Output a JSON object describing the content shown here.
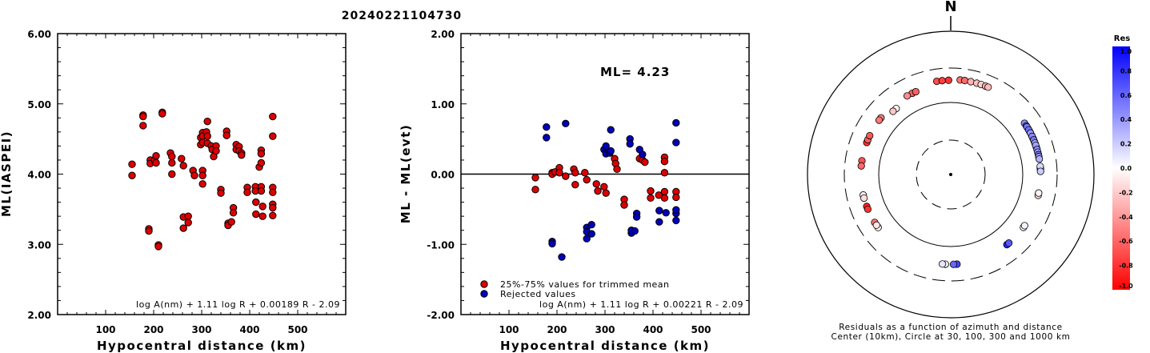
{
  "title": "20240221104730",
  "colors": {
    "accepted": "#dd0000",
    "rejected": "#0000bb",
    "frame": "#000000"
  },
  "chart_data": [
    {
      "type": "scatter",
      "xlabel": "Hypocentral distance (km)",
      "ylabel": "ML(IASPEI)",
      "xlim": [
        0,
        600
      ],
      "ylim": [
        2.0,
        6.0
      ],
      "xticks": [
        "100",
        "200",
        "300",
        "400",
        "500"
      ],
      "yticks": [
        "2.00",
        "3.00",
        "4.00",
        "5.00",
        "6.00"
      ],
      "formula": "log A(nm) + 1.11 log R + 0.00189 R - 2.09",
      "series": [
        {
          "color": "#dd0000",
          "points": [
            [
              155,
              4.14
            ],
            [
              155,
              3.98
            ],
            [
              178,
              4.84
            ],
            [
              178,
              4.82
            ],
            [
              178,
              4.69
            ],
            [
              190,
              3.22
            ],
            [
              190,
              3.19
            ],
            [
              193,
              4.2
            ],
            [
              193,
              4.15
            ],
            [
              202,
              4.2
            ],
            [
              205,
              4.26
            ],
            [
              205,
              4.16
            ],
            [
              210,
              2.99
            ],
            [
              210,
              2.97
            ],
            [
              218,
              4.88
            ],
            [
              218,
              4.86
            ],
            [
              235,
              4.3
            ],
            [
              238,
              4.25
            ],
            [
              238,
              4.16
            ],
            [
              238,
              4.0
            ],
            [
              258,
              4.22
            ],
            [
              262,
              4.12
            ],
            [
              262,
              3.39
            ],
            [
              262,
              3.23
            ],
            [
              272,
              3.4
            ],
            [
              272,
              3.31
            ],
            [
              282,
              4.05
            ],
            [
              285,
              3.98
            ],
            [
              298,
              4.52
            ],
            [
              298,
              4.42
            ],
            [
              302,
              4.59
            ],
            [
              302,
              4.54
            ],
            [
              302,
              4.45
            ],
            [
              302,
              4.05
            ],
            [
              302,
              3.98
            ],
            [
              302,
              3.86
            ],
            [
              310,
              4.6
            ],
            [
              312,
              4.75
            ],
            [
              312,
              4.54
            ],
            [
              312,
              4.44
            ],
            [
              320,
              4.4
            ],
            [
              322,
              4.35
            ],
            [
              325,
              4.25
            ],
            [
              330,
              4.4
            ],
            [
              330,
              4.33
            ],
            [
              340,
              3.78
            ],
            [
              340,
              3.73
            ],
            [
              352,
              4.61
            ],
            [
              352,
              4.55
            ],
            [
              355,
              3.3
            ],
            [
              355,
              3.27
            ],
            [
              362,
              3.32
            ],
            [
              366,
              3.52
            ],
            [
              366,
              3.45
            ],
            [
              372,
              4.42
            ],
            [
              372,
              4.35
            ],
            [
              378,
              4.39
            ],
            [
              378,
              4.33
            ],
            [
              383,
              4.3
            ],
            [
              383,
              4.27
            ],
            [
              395,
              3.81
            ],
            [
              395,
              3.74
            ],
            [
              412,
              3.82
            ],
            [
              412,
              3.76
            ],
            [
              413,
              3.6
            ],
            [
              413,
              3.43
            ],
            [
              420,
              4.1
            ],
            [
              424,
              4.34
            ],
            [
              424,
              4.29
            ],
            [
              424,
              4.16
            ],
            [
              424,
              3.82
            ],
            [
              424,
              3.76
            ],
            [
              427,
              3.54
            ],
            [
              427,
              3.4
            ],
            [
              448,
              4.82
            ],
            [
              448,
              4.54
            ],
            [
              448,
              3.81
            ],
            [
              448,
              3.74
            ],
            [
              448,
              3.57
            ],
            [
              448,
              3.52
            ],
            [
              448,
              3.41
            ]
          ]
        }
      ]
    },
    {
      "type": "scatter",
      "xlabel": "Hypocentral distance (km)",
      "ylabel": "ML - ML(evt)",
      "xlim": [
        0,
        600
      ],
      "ylim": [
        -2.0,
        2.0
      ],
      "xticks": [
        "100",
        "200",
        "300",
        "400",
        "500"
      ],
      "yticks": [
        "-2.00",
        "-1.00",
        "0.00",
        "1.00",
        "2.00"
      ],
      "annotation": "ML= 4.23",
      "formula": "log A(nm) + 1.11 log R + 0.00221 R - 2.09",
      "legend": [
        {
          "label": "25%-75% values for trimmed mean",
          "color": "#dd0000"
        },
        {
          "label": "Rejected values",
          "color": "#0000bb"
        }
      ],
      "series": [
        {
          "name": "25%-75% values for trimmed mean",
          "color": "#dd0000",
          "points": [
            [
              155,
              -0.05
            ],
            [
              155,
              -0.22
            ],
            [
              190,
              0.02
            ],
            [
              190,
              0.0
            ],
            [
              196,
              0.03
            ],
            [
              205,
              0.09
            ],
            [
              205,
              0.02
            ],
            [
              218,
              -0.03
            ],
            [
              235,
              0.07
            ],
            [
              238,
              0.02
            ],
            [
              238,
              -0.15
            ],
            [
              258,
              0.02
            ],
            [
              262,
              -0.08
            ],
            [
              282,
              -0.14
            ],
            [
              285,
              -0.24
            ],
            [
              298,
              -0.18
            ],
            [
              302,
              -0.27
            ],
            [
              320,
              0.22
            ],
            [
              322,
              0.15
            ],
            [
              325,
              0.07
            ],
            [
              340,
              -0.36
            ],
            [
              340,
              -0.44
            ],
            [
              372,
              0.22
            ],
            [
              378,
              0.2
            ],
            [
              383,
              0.17
            ],
            [
              395,
              -0.24
            ],
            [
              395,
              -0.34
            ],
            [
              412,
              -0.3
            ],
            [
              424,
              0.24
            ],
            [
              424,
              0.18
            ],
            [
              424,
              0.02
            ],
            [
              424,
              -0.25
            ],
            [
              424,
              -0.34
            ],
            [
              448,
              -0.25
            ],
            [
              448,
              -0.33
            ]
          ]
        },
        {
          "name": "Rejected values",
          "color": "#0000bb",
          "points": [
            [
              178,
              0.67
            ],
            [
              178,
              0.52
            ],
            [
              190,
              -0.96
            ],
            [
              190,
              -0.99
            ],
            [
              210,
              -1.18
            ],
            [
              218,
              0.72
            ],
            [
              262,
              -0.76
            ],
            [
              262,
              -0.92
            ],
            [
              262,
              -0.82
            ],
            [
              272,
              -0.72
            ],
            [
              272,
              -0.85
            ],
            [
              298,
              0.35
            ],
            [
              302,
              0.4
            ],
            [
              302,
              0.29
            ],
            [
              310,
              0.3
            ],
            [
              312,
              0.63
            ],
            [
              312,
              0.33
            ],
            [
              355,
              -0.84
            ],
            [
              355,
              -0.8
            ],
            [
              362,
              -0.81
            ],
            [
              352,
              0.5
            ],
            [
              352,
              0.43
            ],
            [
              366,
              -0.56
            ],
            [
              366,
              -0.61
            ],
            [
              372,
              0.35
            ],
            [
              378,
              0.28
            ],
            [
              413,
              -0.52
            ],
            [
              413,
              -0.68
            ],
            [
              427,
              -0.55
            ],
            [
              448,
              0.73
            ],
            [
              448,
              0.45
            ],
            [
              448,
              -0.56
            ],
            [
              448,
              -0.66
            ],
            [
              448,
              -0.51
            ]
          ]
        }
      ]
    },
    {
      "type": "scatter",
      "subtype": "polar",
      "north_label": "N",
      "caption_line1": "Residuals as a function of azimuth and distance",
      "caption_line2": "Center (10km), Circle at 30, 100, 300 and 1000 km",
      "circles_km": [
        30,
        100,
        300,
        1000
      ],
      "colorbar": {
        "title": "Res",
        "ticks": [
          "1.0",
          "0.8",
          "0.6",
          "0.4",
          "0.2",
          "0.0",
          "-0.2",
          "-0.4",
          "-0.6",
          "-0.8",
          "-1.0"
        ],
        "range": [
          -1.0,
          1.0
        ],
        "colors": [
          "#0000ff",
          "#ffffff",
          "#ff0000"
        ]
      },
      "stations": [
        {
          "azimuth_deg": -39.6,
          "distance_km": 155,
          "residual": -0.05
        },
        {
          "azimuth_deg": -42.4,
          "distance_km": 155,
          "residual": -0.22
        },
        {
          "azimuth_deg": -25.4,
          "distance_km": 178,
          "residual": -0.65
        },
        {
          "azimuth_deg": -22.9,
          "distance_km": 178,
          "residual": -0.62
        },
        {
          "azimuth_deg": -29.0,
          "distance_km": 178,
          "residual": -0.46
        },
        {
          "azimuth_deg": -8.5,
          "distance_km": 205,
          "residual": -0.7
        },
        {
          "azimuth_deg": -5.2,
          "distance_km": 205,
          "residual": -0.75
        },
        {
          "azimuth_deg": -1.3,
          "distance_km": 205,
          "residual": -0.8
        },
        {
          "azimuth_deg": 5.7,
          "distance_km": 210,
          "residual": -0.55
        },
        {
          "azimuth_deg": 8.5,
          "distance_km": 210,
          "residual": -0.58
        },
        {
          "azimuth_deg": 12.2,
          "distance_km": 210,
          "residual": -0.3
        },
        {
          "azimuth_deg": 15.9,
          "distance_km": 210,
          "residual": -0.24
        },
        {
          "azimuth_deg": 18.7,
          "distance_km": 210,
          "residual": -0.18
        },
        {
          "azimuth_deg": 21.5,
          "distance_km": 210,
          "residual": -0.33
        },
        {
          "azimuth_deg": 23.2,
          "distance_km": 210,
          "residual": -0.27
        },
        {
          "azimuth_deg": -50.9,
          "distance_km": 178,
          "residual": -0.5
        },
        {
          "azimuth_deg": -52.8,
          "distance_km": 178,
          "residual": -0.52
        },
        {
          "azimuth_deg": -69.1,
          "distance_km": 178,
          "residual": -0.8
        },
        {
          "azimuth_deg": -67.2,
          "distance_km": 178,
          "residual": -0.62
        },
        {
          "azimuth_deg": -64.4,
          "distance_km": 178,
          "residual": -0.66
        },
        {
          "azimuth_deg": -81.2,
          "distance_km": 178,
          "residual": -0.68
        },
        {
          "azimuth_deg": -84.5,
          "distance_km": 178,
          "residual": -0.59
        },
        {
          "azimuth_deg": -103.2,
          "distance_km": 178,
          "residual": -0.05
        },
        {
          "azimuth_deg": -105.2,
          "distance_km": 178,
          "residual": -0.12
        },
        {
          "azimuth_deg": -110.8,
          "distance_km": 178,
          "residual": -0.85
        },
        {
          "azimuth_deg": -112.7,
          "distance_km": 178,
          "residual": -0.8
        },
        {
          "azimuth_deg": -122.2,
          "distance_km": 178,
          "residual": -0.55
        },
        {
          "azimuth_deg": -126.1,
          "distance_km": 178,
          "residual": -0.03
        },
        {
          "azimuth_deg": -124.3,
          "distance_km": 178,
          "residual": -0.1
        },
        {
          "azimuth_deg": 176.0,
          "distance_km": 178,
          "residual": 0.72
        },
        {
          "azimuth_deg": 178.2,
          "distance_km": 178,
          "residual": 0.6
        },
        {
          "azimuth_deg": -176.6,
          "distance_km": 178,
          "residual": 0.05
        },
        {
          "azimuth_deg": -174.7,
          "distance_km": 178,
          "residual": 0.1
        },
        {
          "azimuth_deg": 141.3,
          "distance_km": 178,
          "residual": 0.85
        },
        {
          "azimuth_deg": 139.7,
          "distance_km": 178,
          "residual": 0.65
        },
        {
          "azimuth_deg": 126.0,
          "distance_km": 178,
          "residual": 0.02
        },
        {
          "azimuth_deg": 124.7,
          "distance_km": 178,
          "residual": 0.05
        },
        {
          "azimuth_deg": 103.4,
          "distance_km": 178,
          "residual": -0.15
        },
        {
          "azimuth_deg": 101.9,
          "distance_km": 178,
          "residual": -0.05
        },
        {
          "azimuth_deg": 85.5,
          "distance_km": 178,
          "residual": 0.02
        },
        {
          "azimuth_deg": 86.3,
          "distance_km": 178,
          "residual": -0.05
        },
        {
          "azimuth_deg": 86.6,
          "distance_km": 178,
          "residual": 0.05
        },
        {
          "azimuth_deg": 84.8,
          "distance_km": 178,
          "residual": 0.15
        },
        {
          "azimuth_deg": 88.0,
          "distance_km": 178,
          "residual": 0.2
        },
        {
          "azimuth_deg": 55.2,
          "distance_km": 178,
          "residual": 0.45
        },
        {
          "azimuth_deg": 57.2,
          "distance_km": 178,
          "residual": 0.65
        },
        {
          "azimuth_deg": 59.4,
          "distance_km": 178,
          "residual": 0.72
        },
        {
          "azimuth_deg": 61.7,
          "distance_km": 178,
          "residual": 0.8
        },
        {
          "azimuth_deg": 64.5,
          "distance_km": 178,
          "residual": 0.75
        },
        {
          "azimuth_deg": 66.2,
          "distance_km": 178,
          "residual": 0.68
        },
        {
          "azimuth_deg": 68.7,
          "distance_km": 178,
          "residual": 0.85
        },
        {
          "azimuth_deg": 70.4,
          "distance_km": 178,
          "residual": 0.78
        },
        {
          "azimuth_deg": 72.3,
          "distance_km": 178,
          "residual": 0.7
        },
        {
          "azimuth_deg": 58.0,
          "distance_km": 178,
          "residual": 0.52
        },
        {
          "azimuth_deg": 60.2,
          "distance_km": 178,
          "residual": 0.55
        },
        {
          "azimuth_deg": 62.5,
          "distance_km": 178,
          "residual": 0.4
        },
        {
          "azimuth_deg": 64.9,
          "distance_km": 178,
          "residual": 0.46
        },
        {
          "azimuth_deg": 67.3,
          "distance_km": 178,
          "residual": 0.55
        },
        {
          "azimuth_deg": 69.6,
          "distance_km": 178,
          "residual": 0.3
        },
        {
          "azimuth_deg": 71.0,
          "distance_km": 178,
          "residual": 0.36
        },
        {
          "azimuth_deg": 73.8,
          "distance_km": 178,
          "residual": 0.45
        },
        {
          "azimuth_deg": 75.6,
          "distance_km": 178,
          "residual": 0.38
        },
        {
          "azimuth_deg": 77.2,
          "distance_km": 178,
          "residual": 0.52
        },
        {
          "azimuth_deg": 78.5,
          "distance_km": 178,
          "residual": 0.42
        },
        {
          "azimuth_deg": 80.1,
          "distance_km": 178,
          "residual": 0.3
        }
      ]
    }
  ]
}
